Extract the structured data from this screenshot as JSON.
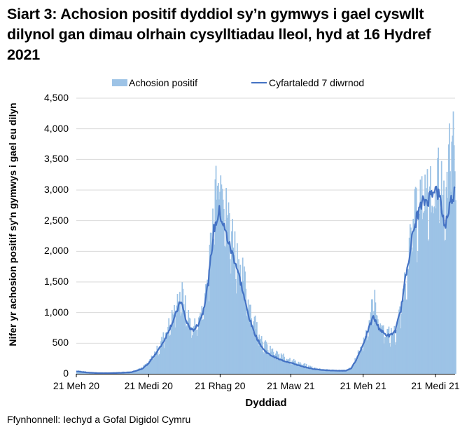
{
  "title": "Siart 3: Achosion positif dyddiol sy’n gymwys i gael cyswllt dilynol gan dimau olrhain cysylltiadau lleol, hyd at 16 Hydref 2021",
  "legend": {
    "bars_label": "Achosion positif",
    "line_label": "Cyfartaledd 7 diwrnod"
  },
  "axes": {
    "y_title": "Nifer yr achosion positif sy'n gymwys i gael eu dilyn",
    "x_title": "Dyddiad",
    "y_ticks": [
      "4,500",
      "4,000",
      "3,500",
      "3,000",
      "2,500",
      "2,000",
      "1,500",
      "1,000",
      "500",
      "0"
    ],
    "x_ticks": [
      "21 Meh 20",
      "21 Medi 20",
      "21 Rhag 20",
      "21 Maw 21",
      "21 Meh 21",
      "21 Medi 21"
    ]
  },
  "source": "Ffynhonnell: Iechyd a Gofal Digidol Cymru",
  "colors": {
    "bars": "#9dc3e6",
    "line": "#4472c4",
    "grid": "#d9d9d9",
    "axis": "#000000"
  },
  "chart_data": {
    "type": "bar",
    "title": "Siart 3: Achosion positif dyddiol sy’n gymwys i gael cyswllt dilynol gan dimau olrhain cysylltiadau lleol, hyd at 16 Hydref 2021",
    "xlabel": "Dyddiad",
    "ylabel": "Nifer yr achosion positif sy'n gymwys i gael eu dilyn",
    "ylim": [
      0,
      4500
    ],
    "grid": true,
    "legend_position": "top",
    "x_range": [
      "2020-06-21",
      "2021-10-16"
    ],
    "x_tick_labels": [
      "21 Meh 20",
      "21 Medi 20",
      "21 Rhag 20",
      "21 Maw 21",
      "21 Meh 21",
      "21 Medi 21"
    ],
    "x": [
      "2020-06-21",
      "2020-07-05",
      "2020-07-19",
      "2020-08-02",
      "2020-08-16",
      "2020-08-30",
      "2020-09-13",
      "2020-09-21",
      "2020-09-27",
      "2020-10-04",
      "2020-10-11",
      "2020-10-18",
      "2020-10-25",
      "2020-11-01",
      "2020-11-08",
      "2020-11-15",
      "2020-11-22",
      "2020-11-29",
      "2020-12-06",
      "2020-12-13",
      "2020-12-20",
      "2020-12-27",
      "2021-01-03",
      "2021-01-10",
      "2021-01-17",
      "2021-01-24",
      "2021-01-31",
      "2021-02-07",
      "2021-02-14",
      "2021-02-21",
      "2021-03-07",
      "2021-03-21",
      "2021-04-04",
      "2021-04-18",
      "2021-05-02",
      "2021-05-16",
      "2021-05-30",
      "2021-06-06",
      "2021-06-13",
      "2021-06-21",
      "2021-06-27",
      "2021-07-04",
      "2021-07-11",
      "2021-07-18",
      "2021-07-25",
      "2021-08-01",
      "2021-08-08",
      "2021-08-15",
      "2021-08-22",
      "2021-08-29",
      "2021-09-05",
      "2021-09-12",
      "2021-09-19",
      "2021-09-26",
      "2021-10-03",
      "2021-10-10",
      "2021-10-16"
    ],
    "series": [
      {
        "name": "Achosion positif",
        "type": "bar",
        "values": [
          60,
          30,
          20,
          20,
          30,
          40,
          110,
          200,
          320,
          450,
          650,
          850,
          1100,
          1350,
          1000,
          750,
          850,
          1150,
          1700,
          2900,
          3800,
          2700,
          2400,
          2000,
          1700,
          1300,
          950,
          700,
          500,
          400,
          300,
          230,
          160,
          100,
          70,
          60,
          60,
          110,
          300,
          550,
          800,
          1250,
          850,
          700,
          650,
          700,
          1100,
          1800,
          2400,
          2800,
          3000,
          2900,
          3100,
          3200,
          2600,
          3950,
          3550
        ]
      },
      {
        "name": "Cyfartaledd 7 diwrnod",
        "type": "line",
        "values": [
          40,
          20,
          10,
          10,
          15,
          25,
          80,
          170,
          280,
          400,
          550,
          750,
          950,
          1200,
          850,
          700,
          780,
          1000,
          1500,
          2350,
          2650,
          2350,
          2050,
          1800,
          1450,
          1050,
          750,
          550,
          400,
          320,
          230,
          180,
          120,
          80,
          60,
          50,
          50,
          90,
          250,
          480,
          700,
          930,
          750,
          650,
          620,
          700,
          1050,
          1650,
          2200,
          2600,
          2800,
          2850,
          3050,
          2900,
          2400,
          2800,
          3000
        ]
      }
    ]
  }
}
